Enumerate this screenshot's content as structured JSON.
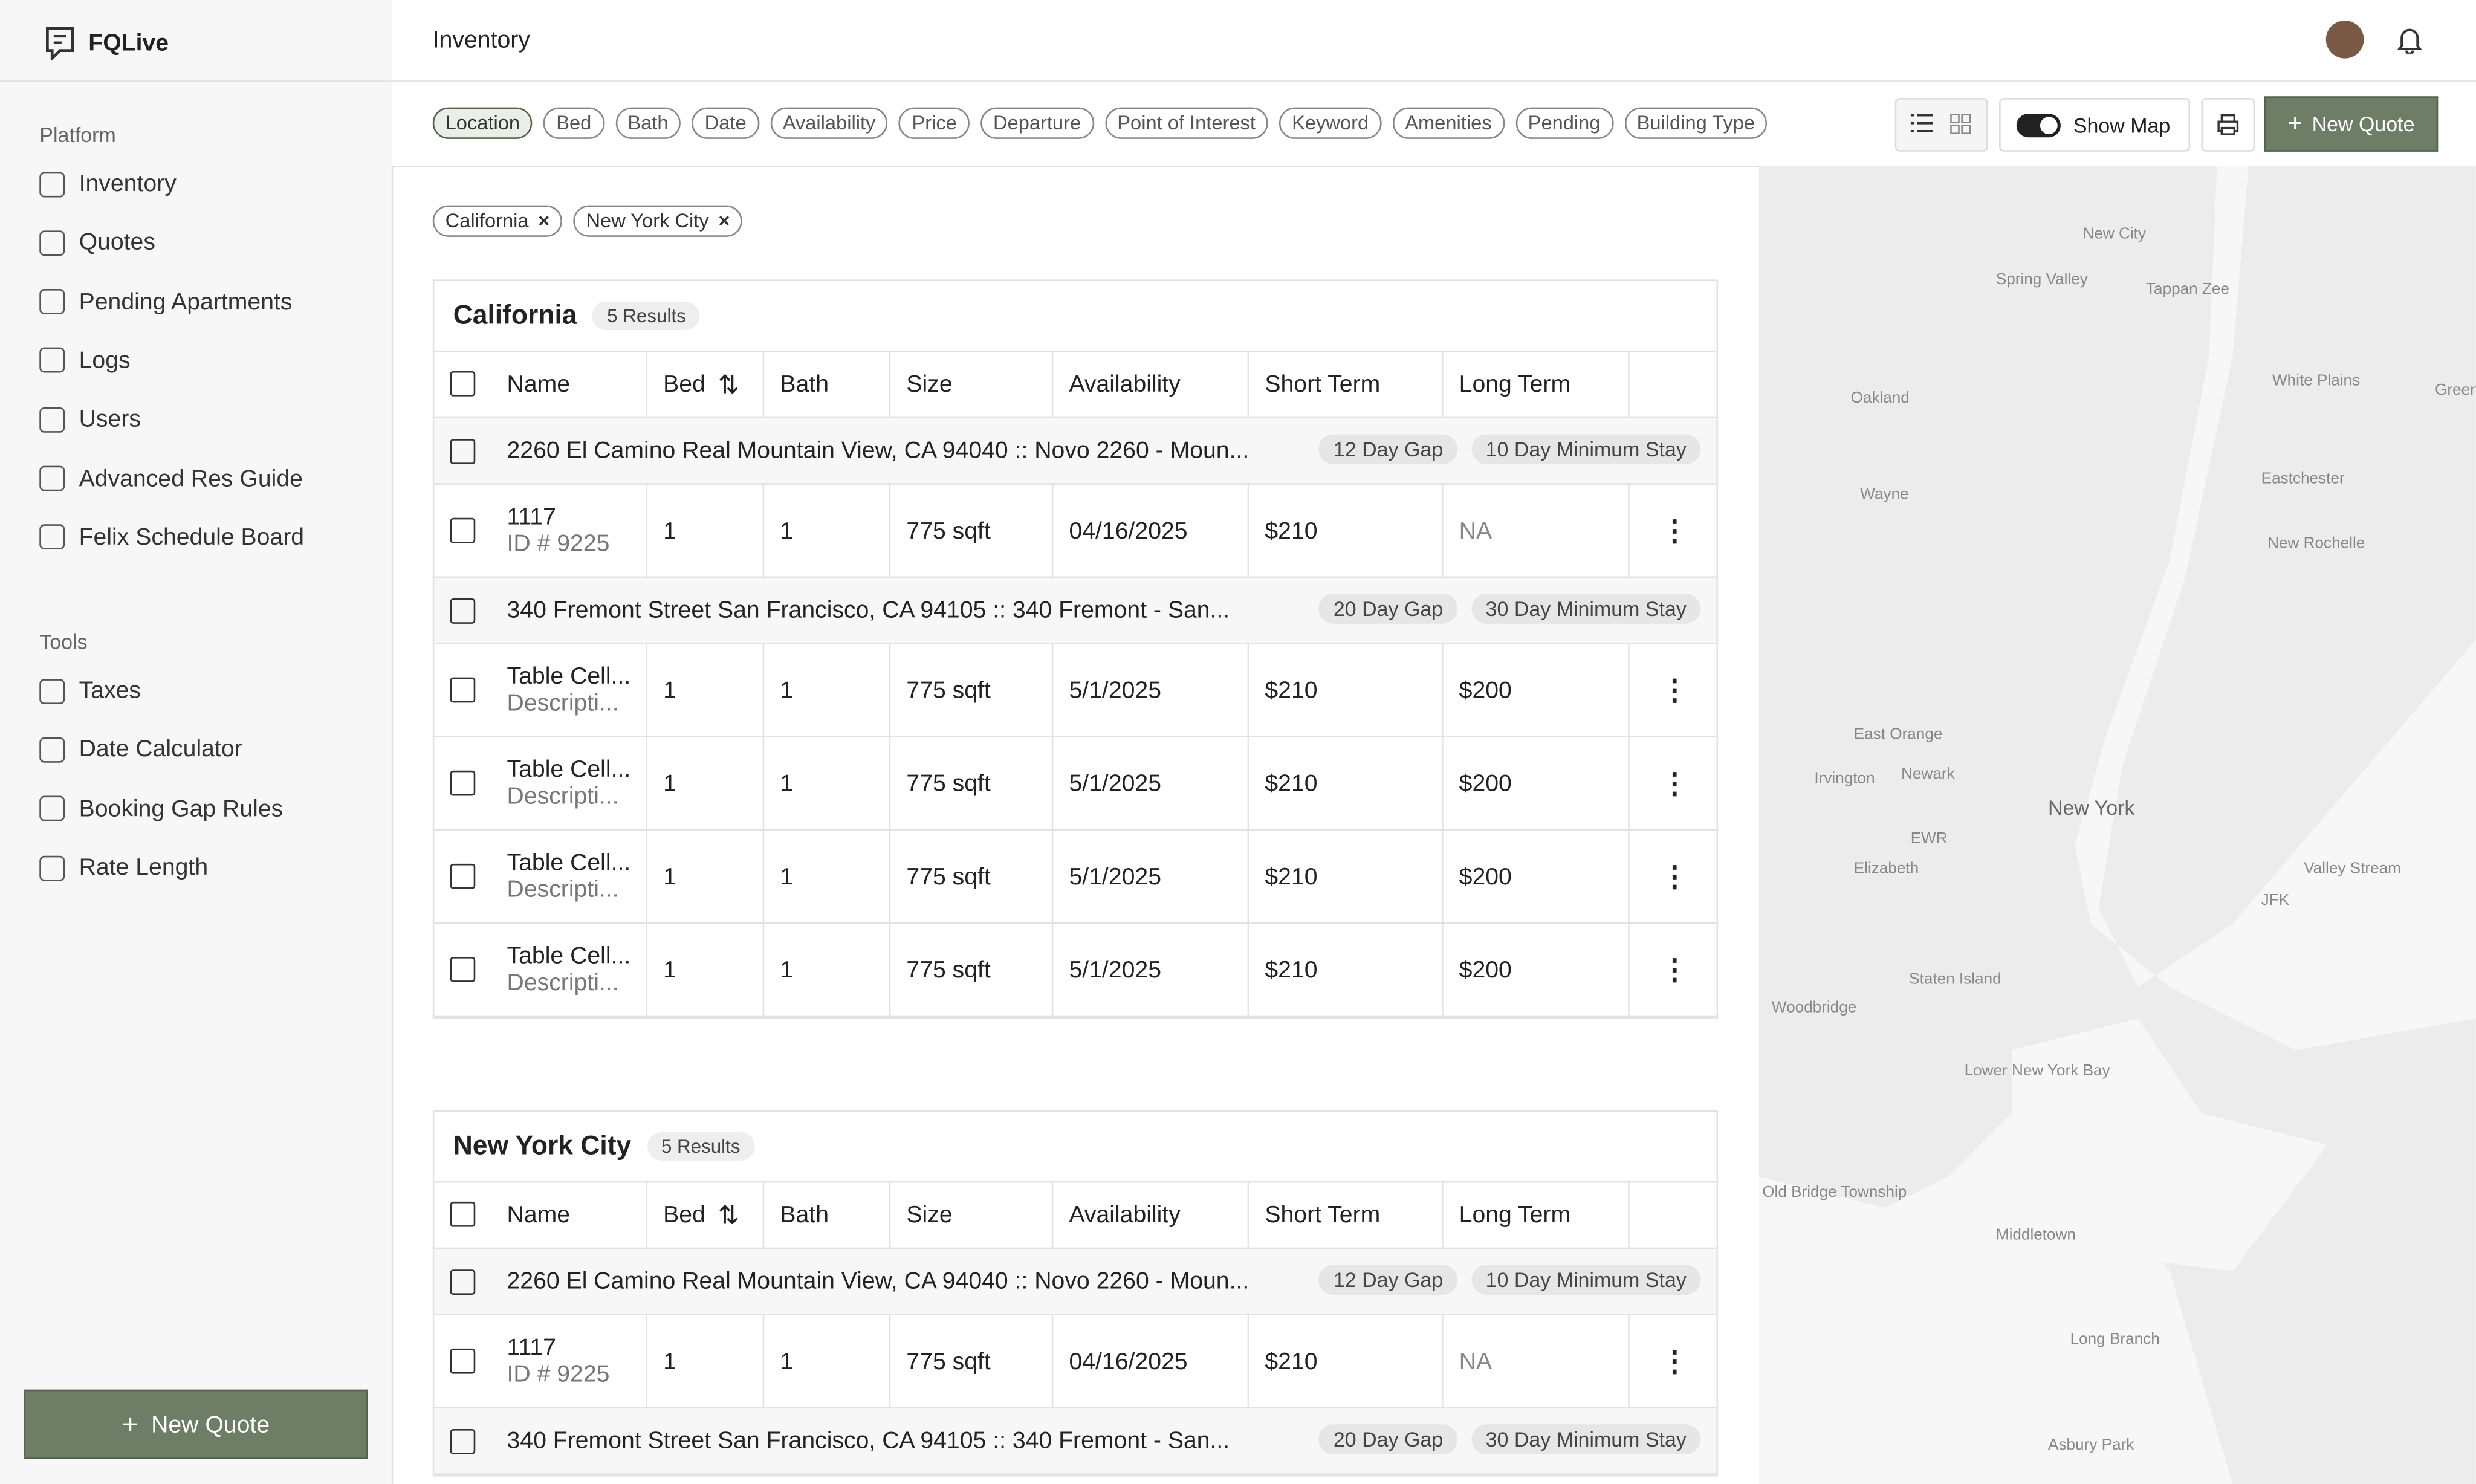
{
  "app": {
    "name": "FQLive"
  },
  "header": {
    "title": "Inventory"
  },
  "sidebar": {
    "sections": [
      {
        "title": "Platform",
        "items": [
          "Inventory",
          "Quotes",
          "Pending Apartments",
          "Logs",
          "Users",
          "Advanced Res Guide",
          "Felix Schedule Board"
        ]
      },
      {
        "title": "Tools",
        "items": [
          "Taxes",
          "Date Calculator",
          "Booking Gap Rules",
          "Rate Length"
        ]
      }
    ],
    "button": "New Quote"
  },
  "filters": [
    "Location",
    "Bed",
    "Bath",
    "Date",
    "Availability",
    "Price",
    "Departure",
    "Point of Interest",
    "Keyword",
    "Amenities",
    "Pending",
    "Building Type"
  ],
  "toolbar": {
    "show_map": "Show Map",
    "new_quote": "New Quote"
  },
  "active_filters": [
    "California",
    "New York City"
  ],
  "groups": [
    {
      "title": "California",
      "results": "5 Results",
      "columns": [
        "Name",
        "Bed",
        "Bath",
        "Size",
        "Availability",
        "Short Term",
        "Long Term"
      ],
      "rows": [
        {
          "name": "2260 El Camino Real Mountain View, CA 94040 :: Novo 2260 - Moun...",
          "gap": "12 Day Gap",
          "stay": "10 Day Minimum Stay"
        },
        {
          "name": "1117",
          "sub": "ID # 9225",
          "bed": 1,
          "bath": 1,
          "size": "775 sqft",
          "availability": "04/16/2025",
          "short_term": "$210",
          "long_term": "NA"
        },
        {
          "name": "340 Fremont Street San Francisco, CA 94105 :: 340 Fremont - San...",
          "gap": "20 Day Gap",
          "stay": "30 Day Minimum Stay"
        },
        {
          "name": "Table Cell...",
          "sub": "Descripti...",
          "bed": 1,
          "bath": 1,
          "size": "775 sqft",
          "availability": "5/1/2025",
          "short_term": "$210",
          "long_term": "$200"
        },
        {
          "name": "Table Cell...",
          "sub": "Descripti...",
          "bed": 1,
          "bath": 1,
          "size": "775 sqft",
          "availability": "5/1/2025",
          "short_term": "$210",
          "long_term": "$200"
        },
        {
          "name": "Table Cell...",
          "sub": "Descripti...",
          "bed": 1,
          "bath": 1,
          "size": "775 sqft",
          "availability": "5/1/2025",
          "short_term": "$210",
          "long_term": "$200"
        },
        {
          "name": "Table Cell...",
          "sub": "Descripti...",
          "bed": 1,
          "bath": 1,
          "size": "775 sqft",
          "availability": "5/1/2025",
          "short_term": "$210",
          "long_term": "$200"
        }
      ]
    },
    {
      "title": "New York City",
      "results": "5 Results",
      "columns": [
        "Name",
        "Bed",
        "Bath",
        "Size",
        "Availability",
        "Short Term",
        "Long Term"
      ],
      "rows": [
        {
          "name": "2260 El Camino Real Mountain View, CA 94040 :: Novo 2260 - Moun...",
          "gap": "12 Day Gap",
          "stay": "10 Day Minimum Stay"
        },
        {
          "name": "1117",
          "sub": "ID # 9225",
          "bed": 1,
          "bath": 1,
          "size": "775 sqft",
          "availability": "04/16/2025",
          "short_term": "$210",
          "long_term": "NA"
        },
        {
          "name": "340 Fremont Street San Francisco, CA 94105 :: 340 Fremont - San...",
          "gap": "20 Day Gap",
          "stay": "30 Day Minimum Stay"
        }
      ]
    }
  ],
  "map": {
    "labels": [
      "New City",
      "Spring Valley",
      "Tappan Zee",
      "Oakland",
      "White Plains",
      "Greenw",
      "Wayne",
      "Eastchester",
      "New Rochelle",
      "East Orange",
      "Irvington",
      "Newark",
      "New York",
      "EWR",
      "Elizabeth",
      "Valley Stream",
      "JFK",
      "Staten Island",
      "Woodbridge",
      "Lower New York Bay",
      "Old Bridge Township",
      "Middletown",
      "Long Branch",
      "Asbury Park"
    ]
  }
}
